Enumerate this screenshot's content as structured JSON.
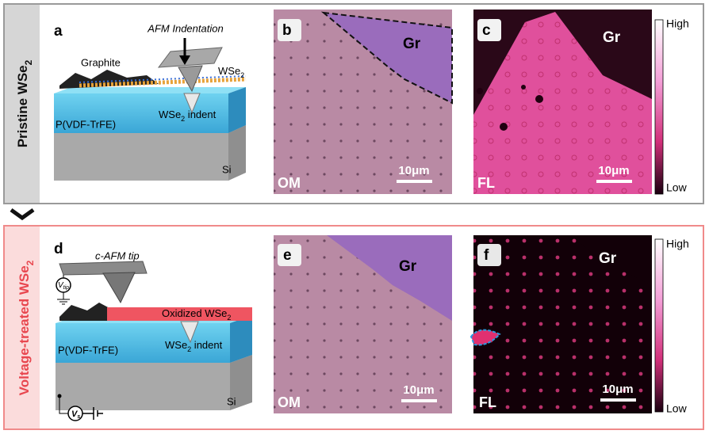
{
  "panels": [
    {
      "side_label": {
        "base": "Pristine WSe",
        "sub": "2"
      },
      "schematic": {
        "letter": "a",
        "tip_label": "AFM Indentation",
        "graphite": "Graphite",
        "layer": {
          "base": "WSe",
          "sub": "2"
        },
        "indent": {
          "base": "WSe",
          "sub": "2",
          "rest": " indent"
        },
        "substrate": "P(VDF-TrFE)",
        "base_layer": "Si"
      },
      "optical": {
        "letter": "b",
        "region": "Gr",
        "mode": "OM",
        "scale": "10μm"
      },
      "fluorescence": {
        "letter": "c",
        "region": "Gr",
        "mode": "FL",
        "scale": "10μm",
        "high": "High",
        "low": "Low"
      }
    },
    {
      "side_label": {
        "base": "Voltage-treated WSe",
        "sub": "2"
      },
      "schematic": {
        "letter": "d",
        "tip_label": "c-AFM tip",
        "tip_voltage": {
          "base": "V",
          "sub": "tip"
        },
        "layer": {
          "base": "Oxidized WSe",
          "sub": "2"
        },
        "indent": {
          "base": "WSe",
          "sub": "2",
          "rest": " indent"
        },
        "substrate": "P(VDF-TrFE)",
        "base_layer": "Si",
        "sample_voltage": {
          "base": "V",
          "sub": "s"
        }
      },
      "optical": {
        "letter": "e",
        "region": "Gr",
        "mode": "OM",
        "scale": "10μm"
      },
      "fluorescence": {
        "letter": "f",
        "region": "Gr",
        "mode": "FL",
        "scale": "10μm",
        "high": "High",
        "low": "Low"
      }
    }
  ]
}
